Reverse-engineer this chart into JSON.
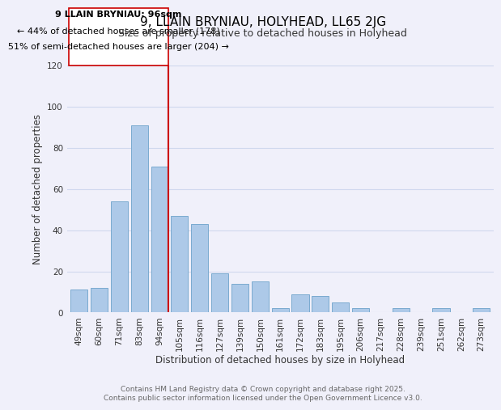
{
  "title": "9, LLAIN BRYNIAU, HOLYHEAD, LL65 2JG",
  "subtitle": "Size of property relative to detached houses in Holyhead",
  "xlabel": "Distribution of detached houses by size in Holyhead",
  "ylabel": "Number of detached properties",
  "bar_labels": [
    "49sqm",
    "60sqm",
    "71sqm",
    "83sqm",
    "94sqm",
    "105sqm",
    "116sqm",
    "127sqm",
    "139sqm",
    "150sqm",
    "161sqm",
    "172sqm",
    "183sqm",
    "195sqm",
    "206sqm",
    "217sqm",
    "228sqm",
    "239sqm",
    "251sqm",
    "262sqm",
    "273sqm"
  ],
  "bar_values": [
    11,
    12,
    54,
    91,
    71,
    47,
    43,
    19,
    14,
    15,
    2,
    9,
    8,
    5,
    2,
    0,
    2,
    0,
    2,
    0,
    2
  ],
  "bar_color": "#adc9e8",
  "bar_edge_color": "#7aaad0",
  "highlight_index": 4,
  "highlight_color": "#cc0000",
  "ylim": [
    0,
    120
  ],
  "yticks": [
    0,
    20,
    40,
    60,
    80,
    100,
    120
  ],
  "annotation_title": "9 LLAIN BRYNIAU: 96sqm",
  "annotation_line1": "← 44% of detached houses are smaller (178)",
  "annotation_line2": "51% of semi-detached houses are larger (204) →",
  "footer1": "Contains HM Land Registry data © Crown copyright and database right 2025.",
  "footer2": "Contains public sector information licensed under the Open Government Licence v3.0.",
  "background_color": "#f0f0fa",
  "grid_color": "#d0d8ee",
  "title_fontsize": 11,
  "subtitle_fontsize": 9,
  "axis_label_fontsize": 8.5,
  "tick_fontsize": 7.5,
  "annotation_fontsize": 8,
  "footer_fontsize": 6.5
}
